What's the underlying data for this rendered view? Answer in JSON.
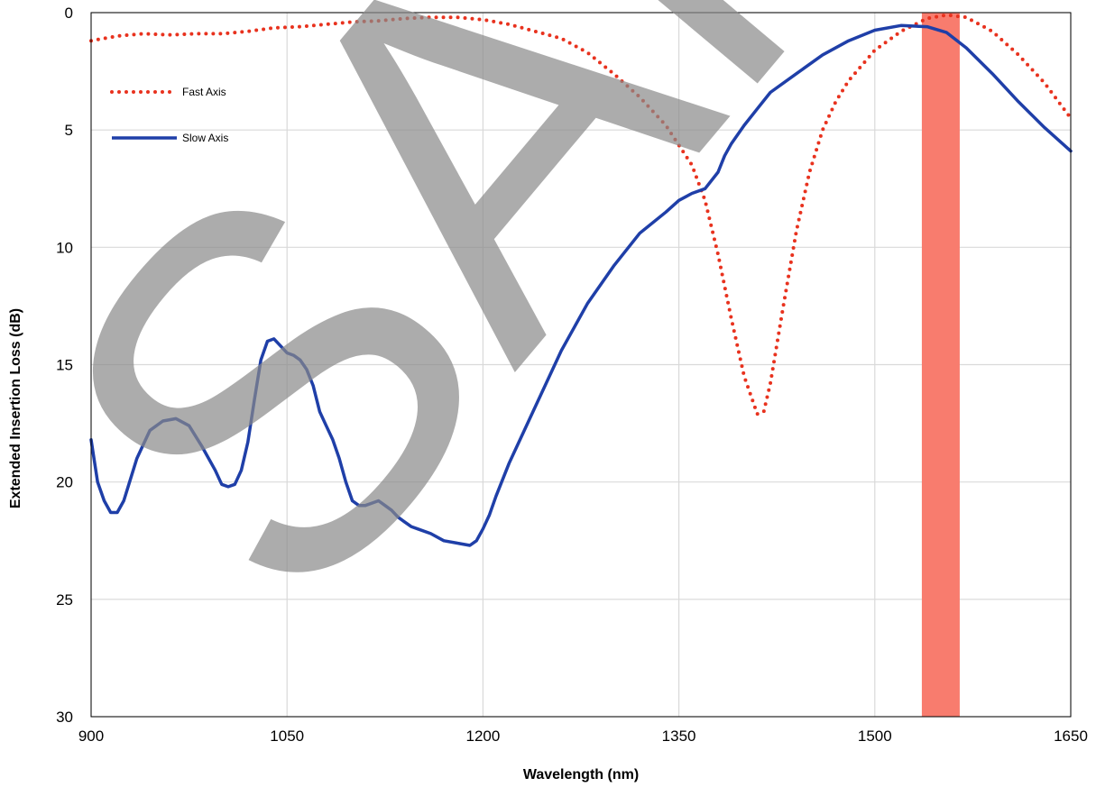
{
  "chart_data": {
    "type": "line",
    "title": "",
    "xlabel": "Wavelength (nm)",
    "ylabel": "Extended Insertion Loss (dB)",
    "xlim": [
      900,
      1650
    ],
    "ylim": [
      0,
      30
    ],
    "y_inverted": true,
    "x_ticks": [
      900,
      1050,
      1200,
      1350,
      1500,
      1650
    ],
    "y_ticks": [
      0,
      5,
      10,
      15,
      20,
      25,
      30
    ],
    "grid": true,
    "legend_position": "upper-left",
    "watermark": "SAMPLE",
    "highlight_band": {
      "x_from": 1536,
      "x_to": 1565,
      "color": "#f87c6e"
    },
    "series": [
      {
        "name": "Fast Axis",
        "style": "dotted",
        "color": "#e8321e",
        "x": [
          900,
          920,
          940,
          960,
          980,
          1000,
          1020,
          1040,
          1060,
          1080,
          1100,
          1120,
          1140,
          1160,
          1180,
          1200,
          1220,
          1240,
          1260,
          1280,
          1300,
          1320,
          1340,
          1360,
          1370,
          1380,
          1390,
          1400,
          1410,
          1415,
          1420,
          1430,
          1440,
          1450,
          1460,
          1470,
          1480,
          1500,
          1520,
          1540,
          1555,
          1570,
          1590,
          1610,
          1630,
          1650
        ],
        "y": [
          1.2,
          1.0,
          0.9,
          0.95,
          0.9,
          0.9,
          0.8,
          0.65,
          0.6,
          0.5,
          0.4,
          0.35,
          0.25,
          0.2,
          0.2,
          0.3,
          0.5,
          0.8,
          1.1,
          1.7,
          2.6,
          3.6,
          4.8,
          6.5,
          8.0,
          10.3,
          13.0,
          15.5,
          17.1,
          17.0,
          15.8,
          12.5,
          9.3,
          6.8,
          5.0,
          3.8,
          2.9,
          1.6,
          0.8,
          0.25,
          0.1,
          0.2,
          0.8,
          1.8,
          3.0,
          4.5
        ]
      },
      {
        "name": "Slow Axis",
        "style": "solid",
        "color": "#1f3fa8",
        "x": [
          900,
          905,
          910,
          915,
          920,
          925,
          935,
          945,
          955,
          965,
          975,
          985,
          995,
          1000,
          1005,
          1010,
          1015,
          1020,
          1025,
          1030,
          1035,
          1040,
          1045,
          1050,
          1055,
          1060,
          1065,
          1070,
          1075,
          1080,
          1085,
          1090,
          1095,
          1100,
          1105,
          1110,
          1115,
          1120,
          1125,
          1130,
          1135,
          1140,
          1145,
          1150,
          1160,
          1170,
          1180,
          1190,
          1195,
          1200,
          1205,
          1210,
          1220,
          1240,
          1260,
          1280,
          1300,
          1320,
          1340,
          1350,
          1360,
          1370,
          1380,
          1385,
          1390,
          1400,
          1410,
          1420,
          1440,
          1460,
          1480,
          1500,
          1520,
          1540,
          1555,
          1570,
          1590,
          1610,
          1630,
          1650
        ],
        "y": [
          18.2,
          20.0,
          20.8,
          21.3,
          21.3,
          20.8,
          19.0,
          17.8,
          17.4,
          17.3,
          17.6,
          18.5,
          19.5,
          20.1,
          20.2,
          20.1,
          19.5,
          18.3,
          16.5,
          14.8,
          14.0,
          13.9,
          14.2,
          14.5,
          14.6,
          14.8,
          15.2,
          15.9,
          17.0,
          17.6,
          18.2,
          19.0,
          20.0,
          20.8,
          21.0,
          21.0,
          20.9,
          20.8,
          21.0,
          21.2,
          21.5,
          21.7,
          21.9,
          22.0,
          22.2,
          22.5,
          22.6,
          22.7,
          22.5,
          22.0,
          21.4,
          20.6,
          19.2,
          16.8,
          14.4,
          12.4,
          10.8,
          9.4,
          8.5,
          8.0,
          7.7,
          7.5,
          6.8,
          6.1,
          5.6,
          4.8,
          4.1,
          3.4,
          2.6,
          1.8,
          1.2,
          0.75,
          0.55,
          0.6,
          0.85,
          1.5,
          2.6,
          3.8,
          4.9,
          5.9
        ]
      }
    ]
  }
}
